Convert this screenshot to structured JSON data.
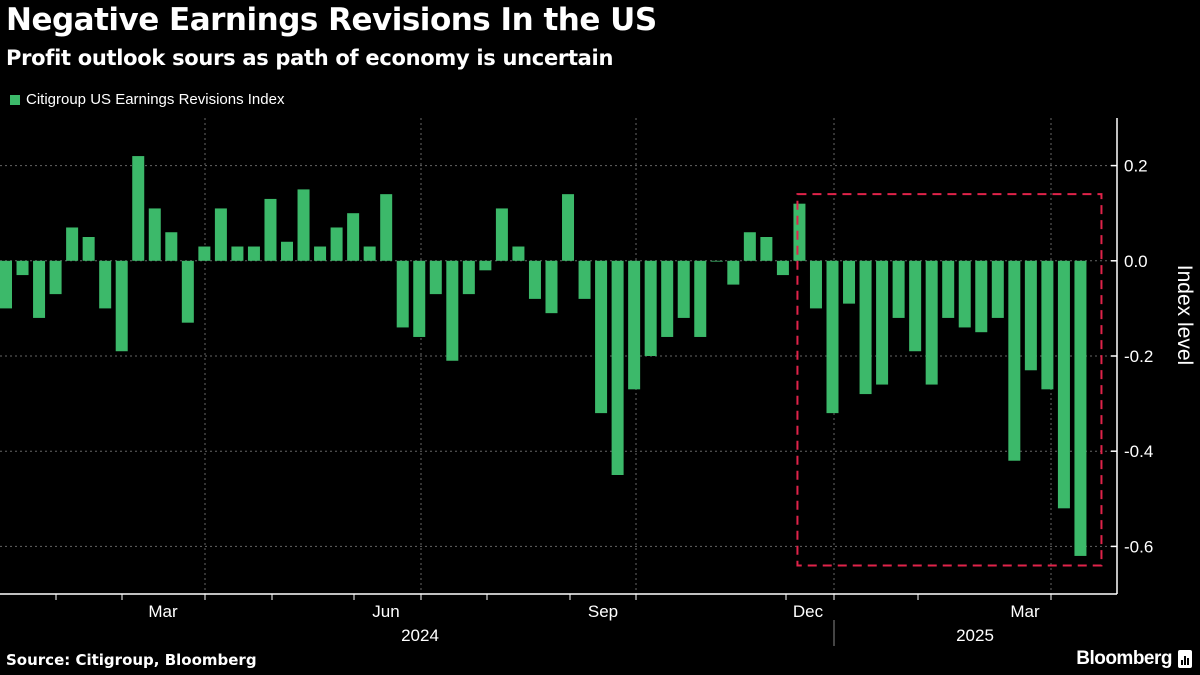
{
  "header": {
    "title": "Negative Earnings Revisions In the US",
    "subtitle": "Profit outlook sours as path of economy is uncertain"
  },
  "footer": {
    "source": "Source: Citigroup, Bloomberg",
    "brand": "Bloomberg"
  },
  "chart_data": {
    "type": "bar",
    "title": "Negative Earnings Revisions In the US",
    "subtitle": "Profit outlook sours as path of economy is uncertain",
    "xlabel": "",
    "ylabel": "Index level",
    "ylim": [
      -0.7,
      0.3
    ],
    "y_axis_side": "right",
    "yticks": [
      "0.2",
      "0.0",
      "-0.2",
      "-0.4",
      "-0.6"
    ],
    "ytick_values": [
      0.2,
      0.0,
      -0.2,
      -0.4,
      -0.6
    ],
    "xtick_labels": [
      "Mar",
      "Jun",
      "Sep",
      "Dec",
      "Mar"
    ],
    "year_labels": [
      "2024",
      "2025"
    ],
    "grid": true,
    "legend_position": "top-left",
    "x": [
      "2024-01-12",
      "2024-01-19",
      "2024-01-26",
      "2024-02-02",
      "2024-02-09",
      "2024-02-16",
      "2024-02-23",
      "2024-03-01",
      "2024-03-08",
      "2024-03-15",
      "2024-03-22",
      "2024-03-29",
      "2024-04-05",
      "2024-04-12",
      "2024-04-19",
      "2024-04-26",
      "2024-05-03",
      "2024-05-10",
      "2024-05-17",
      "2024-05-24",
      "2024-05-31",
      "2024-06-07",
      "2024-06-14",
      "2024-06-21",
      "2024-06-28",
      "2024-07-05",
      "2024-07-12",
      "2024-07-19",
      "2024-07-26",
      "2024-08-02",
      "2024-08-09",
      "2024-08-16",
      "2024-08-23",
      "2024-08-30",
      "2024-09-06",
      "2024-09-13",
      "2024-09-20",
      "2024-09-27",
      "2024-10-04",
      "2024-10-11",
      "2024-10-18",
      "2024-10-25",
      "2024-11-01",
      "2024-11-08",
      "2024-11-15",
      "2024-11-22",
      "2024-11-29",
      "2024-12-06",
      "2024-12-13",
      "2024-12-20",
      "2024-12-27",
      "2025-01-03",
      "2025-01-10",
      "2025-01-17",
      "2025-01-24",
      "2025-01-31",
      "2025-02-07",
      "2025-02-14",
      "2025-02-21",
      "2025-02-28",
      "2025-03-07",
      "2025-03-14",
      "2025-03-21",
      "2025-03-28",
      "2025-04-04",
      "2025-04-11"
    ],
    "series": [
      {
        "name": "Citigroup US Earnings Revisions Index",
        "color": "#3cb96a",
        "values": [
          -0.1,
          -0.03,
          -0.12,
          -0.07,
          0.07,
          0.05,
          -0.1,
          -0.19,
          0.22,
          0.11,
          0.06,
          -0.13,
          0.03,
          0.11,
          0.03,
          0.03,
          0.13,
          0.04,
          0.15,
          0.03,
          0.07,
          0.1,
          0.03,
          0.14,
          -0.14,
          -0.16,
          -0.07,
          -0.21,
          -0.07,
          -0.02,
          0.11,
          0.03,
          -0.08,
          -0.11,
          0.14,
          -0.08,
          -0.32,
          -0.45,
          -0.27,
          -0.2,
          -0.16,
          -0.12,
          -0.16,
          0.0,
          -0.05,
          0.06,
          0.05,
          -0.03,
          0.12,
          -0.1,
          -0.32,
          -0.09,
          -0.28,
          -0.26,
          -0.12,
          -0.19,
          -0.26,
          -0.12,
          -0.14,
          -0.15,
          -0.12,
          -0.42,
          -0.23,
          -0.27,
          -0.52,
          -0.62
        ]
      }
    ],
    "annotation": {
      "type": "dashed-box",
      "color": "#e0234a",
      "x_start": "2024-12-13",
      "x_end": "2025-04-11",
      "y_range": [
        -0.64,
        0.14
      ]
    }
  }
}
